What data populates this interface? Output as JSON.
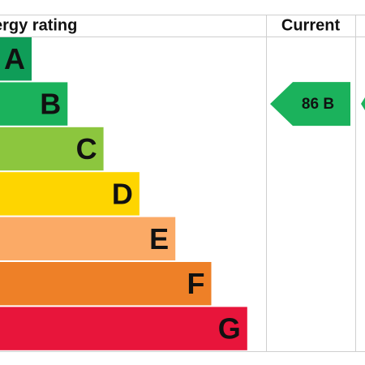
{
  "header": {
    "title": "ergy rating",
    "current": "Current"
  },
  "bands": [
    {
      "letter": "A",
      "color": "#0f9d58"
    },
    {
      "letter": "B",
      "color": "#1bb25c"
    },
    {
      "letter": "C",
      "color": "#8cc63e"
    },
    {
      "letter": "D",
      "color": "#fed500"
    },
    {
      "letter": "E",
      "color": "#fbaa66"
    },
    {
      "letter": "F",
      "color": "#ee8027"
    },
    {
      "letter": "G",
      "color": "#e8153b"
    }
  ],
  "current": {
    "label": "86 B",
    "color": "#1bb25c"
  }
}
